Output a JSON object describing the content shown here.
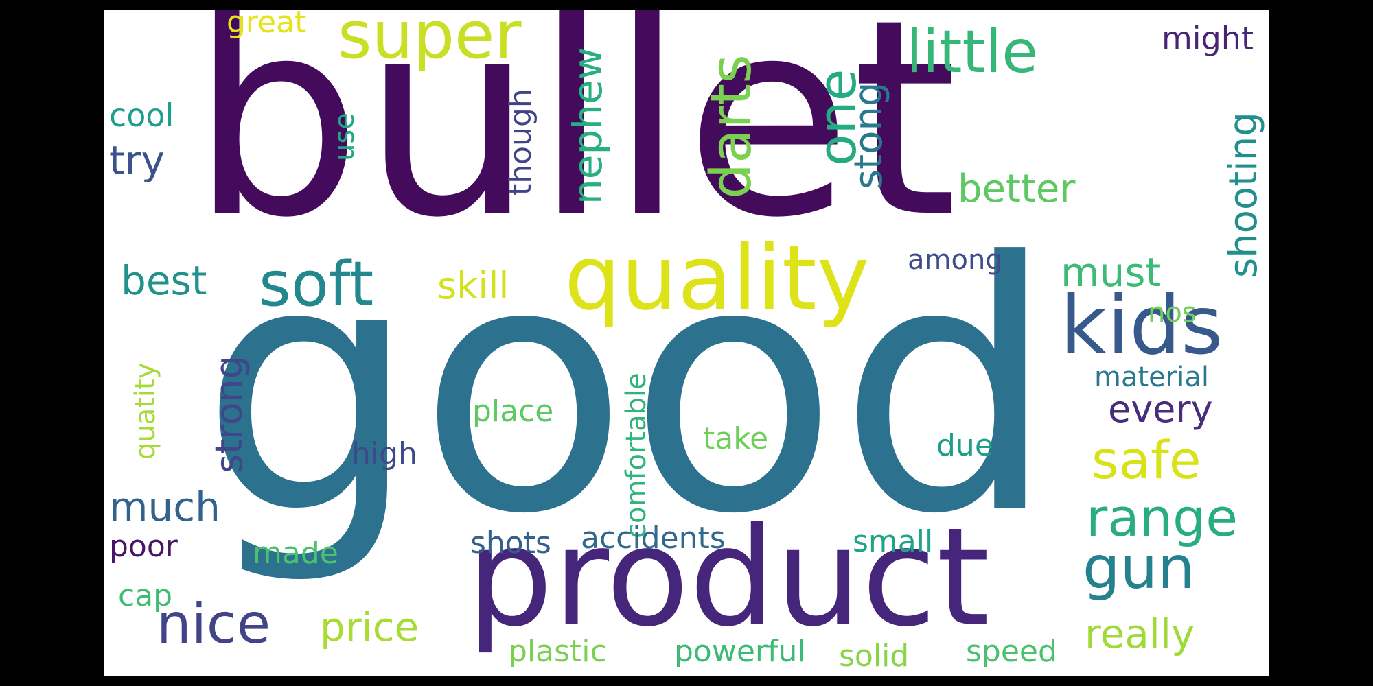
{
  "word_cloud": {
    "words": [
      {
        "id": "bullet",
        "text": "bullet",
        "color": "#440a5b"
      },
      {
        "id": "good",
        "text": "good",
        "color": "#2c718e"
      },
      {
        "id": "product",
        "text": "product",
        "color": "#46267a"
      },
      {
        "id": "quality",
        "text": "quality",
        "color": "#dde318"
      },
      {
        "id": "super",
        "text": "super",
        "color": "#c8df25"
      },
      {
        "id": "soft",
        "text": "soft",
        "color": "#23888e"
      },
      {
        "id": "kids",
        "text": "kids",
        "color": "#38598c"
      },
      {
        "id": "darts",
        "text": "darts",
        "color": "#7ad151"
      },
      {
        "id": "one",
        "text": "one",
        "color": "#25ab82"
      },
      {
        "id": "little",
        "text": "little",
        "color": "#35b779"
      },
      {
        "id": "stong",
        "text": "stong",
        "color": "#2a788e"
      },
      {
        "id": "nephew",
        "text": "nephew",
        "color": "#29af7f"
      },
      {
        "id": "shooting",
        "text": "shooting",
        "color": "#21908d"
      },
      {
        "id": "better",
        "text": "better",
        "color": "#5ec962"
      },
      {
        "id": "might",
        "text": "might",
        "color": "#482475"
      },
      {
        "id": "great",
        "text": "great",
        "color": "#e5e419"
      },
      {
        "id": "cool",
        "text": "cool",
        "color": "#1f9e89"
      },
      {
        "id": "try",
        "text": "try",
        "color": "#3b528b"
      },
      {
        "id": "use",
        "text": "use",
        "color": "#22a785"
      },
      {
        "id": "though",
        "text": "though",
        "color": "#414487"
      },
      {
        "id": "best",
        "text": "best",
        "color": "#21918c"
      },
      {
        "id": "skill",
        "text": "skill",
        "color": "#d2e21b"
      },
      {
        "id": "among",
        "text": "among",
        "color": "#3e4c8a"
      },
      {
        "id": "must",
        "text": "must",
        "color": "#3bbb75"
      },
      {
        "id": "safe",
        "text": "safe",
        "color": "#d8e219"
      },
      {
        "id": "nos",
        "text": "nos",
        "color": "#6ece58"
      },
      {
        "id": "range",
        "text": "range",
        "color": "#27ad81"
      },
      {
        "id": "material",
        "text": "material",
        "color": "#2a788e"
      },
      {
        "id": "every",
        "text": "every",
        "color": "#472d7b"
      },
      {
        "id": "strong",
        "text": "strong",
        "color": "#3f4788"
      },
      {
        "id": "quatity",
        "text": "quatity",
        "color": "#a5db36"
      },
      {
        "id": "comfortable",
        "text": "comfortable",
        "color": "#2fb47c"
      },
      {
        "id": "place",
        "text": "place",
        "color": "#5ec962"
      },
      {
        "id": "take",
        "text": "take",
        "color": "#6ece58"
      },
      {
        "id": "due",
        "text": "due",
        "color": "#1f9e89"
      },
      {
        "id": "high",
        "text": "high",
        "color": "#3e4989"
      },
      {
        "id": "much",
        "text": "much",
        "color": "#33638d"
      },
      {
        "id": "gun",
        "text": "gun",
        "color": "#26818e"
      },
      {
        "id": "poor",
        "text": "poor",
        "color": "#481668"
      },
      {
        "id": "made",
        "text": "made",
        "color": "#4ac16d"
      },
      {
        "id": "shots",
        "text": "shots",
        "color": "#355f8d"
      },
      {
        "id": "accidents",
        "text": "accidents",
        "color": "#31688e"
      },
      {
        "id": "small",
        "text": "small",
        "color": "#20a486"
      },
      {
        "id": "cap",
        "text": "cap",
        "color": "#3dbc74"
      },
      {
        "id": "nice",
        "text": "nice",
        "color": "#414487"
      },
      {
        "id": "price",
        "text": "price",
        "color": "#a8db34"
      },
      {
        "id": "really",
        "text": "really",
        "color": "#a0da39"
      },
      {
        "id": "plastic",
        "text": "plastic",
        "color": "#7ad151"
      },
      {
        "id": "powerful",
        "text": "powerful",
        "color": "#3bbb75"
      },
      {
        "id": "solid",
        "text": "solid",
        "color": "#86d549"
      },
      {
        "id": "speed",
        "text": "speed",
        "color": "#4ac16d"
      }
    ]
  }
}
